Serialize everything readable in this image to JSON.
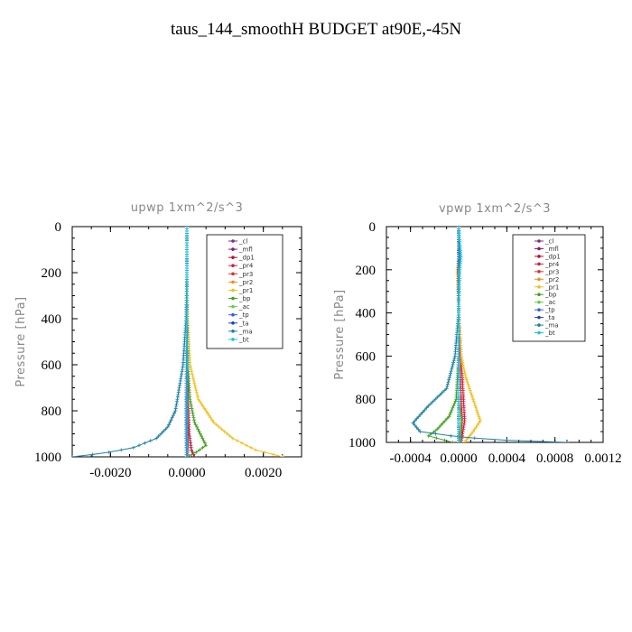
{
  "page_title": "taus_144_smoothH  BUDGET at90E,-45N",
  "chart_data": [
    {
      "type": "line",
      "title": "upwp   1xm^2/s^3",
      "ylabel": "Pressure [hPa]",
      "xlabel": "",
      "xlim": [
        -0.003,
        0.003
      ],
      "ylim": [
        1000,
        0
      ],
      "xticks": [
        "-0.0020",
        "0.0000",
        "0.0020"
      ],
      "xtick_values": [
        -0.002,
        0.0,
        0.002
      ],
      "yticks": [
        "0",
        "200",
        "400",
        "600",
        "800",
        "1000"
      ],
      "ytick_values": [
        0,
        200,
        400,
        600,
        800,
        1000
      ],
      "legend_position": "top-right",
      "series": [
        {
          "name": "_cl",
          "color": "#7b2d8b",
          "x": [
            0,
            0,
            0,
            0,
            0,
            0,
            0
          ],
          "y": [
            0,
            200,
            400,
            600,
            800,
            900,
            1000
          ]
        },
        {
          "name": "_mfl",
          "color": "#8b1a6b",
          "x": [
            0,
            0,
            0,
            0,
            0,
            0,
            0
          ],
          "y": [
            0,
            200,
            400,
            600,
            800,
            900,
            1000
          ]
        },
        {
          "name": "_dp1",
          "color": "#b0103a",
          "x": [
            0,
            0,
            0.0,
            2e-05,
            4e-05,
            6e-05,
            0.00012,
            0.0002
          ],
          "y": [
            0,
            200,
            400,
            600,
            800,
            900,
            970,
            1000
          ]
        },
        {
          "name": "_pr4",
          "color": "#d02040",
          "x": [
            0,
            0,
            0,
            2e-05,
            4e-05,
            4e-05,
            2e-05
          ],
          "y": [
            0,
            200,
            400,
            600,
            800,
            900,
            1000
          ]
        },
        {
          "name": "_pr3",
          "color": "#e03030",
          "x": [
            0,
            0,
            0,
            0,
            2e-05,
            2e-05,
            0
          ],
          "y": [
            0,
            200,
            400,
            600,
            800,
            900,
            1000
          ]
        },
        {
          "name": "_pr2",
          "color": "#e89020",
          "x": [
            0,
            0,
            0,
            0,
            0,
            0,
            0
          ],
          "y": [
            0,
            200,
            400,
            600,
            800,
            900,
            1000
          ]
        },
        {
          "name": "_pr1",
          "color": "#f0c020",
          "x": [
            0,
            0,
            2e-05,
            8e-05,
            0.0003,
            0.0007,
            0.0012,
            0.0018,
            0.0025
          ],
          "y": [
            0,
            200,
            400,
            600,
            750,
            850,
            920,
            970,
            1000
          ]
        },
        {
          "name": "_bp",
          "color": "#40a020",
          "x": [
            0,
            0,
            0,
            2e-05,
            8e-05,
            0.0002,
            0.0005,
            0.0002,
            0
          ],
          "y": [
            0,
            200,
            400,
            600,
            750,
            850,
            950,
            985,
            1000
          ]
        },
        {
          "name": "_ac",
          "color": "#60d040",
          "x": [
            0,
            0,
            0,
            0,
            0,
            0,
            0
          ],
          "y": [
            0,
            200,
            400,
            600,
            800,
            900,
            1000
          ]
        },
        {
          "name": "_tp",
          "color": "#3060e0",
          "x": [
            0,
            0,
            0,
            -1e-05,
            -2e-05,
            -2e-05,
            -1e-05
          ],
          "y": [
            0,
            200,
            400,
            600,
            800,
            900,
            1000
          ]
        },
        {
          "name": "_ta",
          "color": "#2040c0",
          "x": [
            0,
            0,
            0,
            0,
            0,
            0,
            0
          ],
          "y": [
            0,
            200,
            400,
            600,
            800,
            900,
            1000
          ]
        },
        {
          "name": "_ma",
          "color": "#2080a0",
          "x": [
            0,
            0,
            -2e-05,
            -0.0001,
            -0.0002,
            -0.0003,
            -0.0005,
            -0.0008,
            -0.0014,
            -0.0022,
            -0.003
          ],
          "y": [
            0,
            200,
            400,
            600,
            700,
            800,
            870,
            920,
            960,
            985,
            1000
          ]
        },
        {
          "name": "_bt",
          "color": "#20c0e0",
          "x": [
            0,
            0,
            0,
            0,
            0,
            0,
            0
          ],
          "y": [
            0,
            200,
            400,
            600,
            800,
            900,
            1000
          ]
        }
      ]
    },
    {
      "type": "line",
      "title": "vpwp   1xm^2/s^3",
      "ylabel": "Pressure [hPa]",
      "xlabel": "",
      "xlim": [
        -0.0006,
        0.0012
      ],
      "ylim": [
        1000,
        0
      ],
      "xticks": [
        "-0.0004",
        "0.0000",
        "0.0004",
        "0.0008",
        "0.0012"
      ],
      "xtick_values": [
        -0.0004,
        0.0,
        0.0004,
        0.0008,
        0.0012
      ],
      "yticks": [
        "0",
        "200",
        "400",
        "600",
        "800",
        "1000"
      ],
      "ytick_values": [
        0,
        200,
        400,
        600,
        800,
        1000
      ],
      "legend_position": "top-right",
      "series": [
        {
          "name": "_cl",
          "color": "#7b2d8b",
          "x": [
            0,
            0,
            0,
            0,
            0,
            0,
            0
          ],
          "y": [
            0,
            200,
            400,
            600,
            800,
            900,
            1000
          ]
        },
        {
          "name": "_mfl",
          "color": "#8b1a6b",
          "x": [
            0,
            0,
            0,
            0,
            0,
            0,
            0
          ],
          "y": [
            0,
            200,
            400,
            600,
            800,
            900,
            1000
          ]
        },
        {
          "name": "_dp1",
          "color": "#b0103a",
          "x": [
            0,
            0,
            0,
            1e-05,
            2e-05,
            3e-05,
            2e-05
          ],
          "y": [
            0,
            200,
            400,
            600,
            800,
            900,
            1000
          ]
        },
        {
          "name": "_pr4",
          "color": "#d02040",
          "x": [
            0,
            0,
            0,
            2e-05,
            4e-05,
            5e-05,
            2e-05
          ],
          "y": [
            0,
            200,
            400,
            600,
            800,
            900,
            1000
          ]
        },
        {
          "name": "_pr3",
          "color": "#e03030",
          "x": [
            0,
            0,
            0,
            1e-05,
            2e-05,
            2e-05,
            0
          ],
          "y": [
            0,
            200,
            400,
            600,
            800,
            900,
            1000
          ]
        },
        {
          "name": "_pr2",
          "color": "#e89020",
          "x": [
            0,
            0,
            -1e-05,
            0,
            0,
            0,
            0
          ],
          "y": [
            0,
            140,
            200,
            400,
            600,
            800,
            1000
          ]
        },
        {
          "name": "_pr1",
          "color": "#f0c020",
          "x": [
            0,
            0,
            0,
            2e-05,
            6e-05,
            0.00012,
            0.00018,
            0.00012,
            5e-05
          ],
          "y": [
            0,
            200,
            400,
            600,
            700,
            800,
            900,
            950,
            1000
          ]
        },
        {
          "name": "_bp",
          "color": "#40a020",
          "x": [
            0,
            0,
            0,
            0,
            -2e-05,
            -8e-05,
            -0.00018,
            -0.00025,
            -5e-05
          ],
          "y": [
            0,
            200,
            400,
            600,
            800,
            880,
            940,
            970,
            1000
          ]
        },
        {
          "name": "_ac",
          "color": "#60d040",
          "x": [
            0,
            0,
            0,
            0,
            0,
            2e-05,
            1e-05
          ],
          "y": [
            0,
            200,
            400,
            600,
            800,
            900,
            1000
          ]
        },
        {
          "name": "_tp",
          "color": "#3060e0",
          "x": [
            0,
            1e-05,
            0,
            0,
            0,
            0,
            0
          ],
          "y": [
            0,
            150,
            200,
            400,
            600,
            800,
            1000
          ]
        },
        {
          "name": "_ta",
          "color": "#2040c0",
          "x": [
            0,
            0,
            0,
            0,
            0,
            0,
            0
          ],
          "y": [
            0,
            200,
            400,
            600,
            800,
            900,
            1000
          ]
        },
        {
          "name": "_ma",
          "color": "#2080a0",
          "x": [
            0,
            0,
            0,
            -3e-05,
            -0.0001,
            -0.00025,
            -0.00038,
            -0.00032,
            0,
            0.0004,
            0.0009
          ],
          "y": [
            0,
            200,
            400,
            600,
            750,
            830,
            910,
            950,
            975,
            990,
            1000
          ]
        },
        {
          "name": "_bt",
          "color": "#20c0e0",
          "x": [
            0,
            2e-05,
            1e-05,
            0,
            0,
            0,
            0
          ],
          "y": [
            0,
            140,
            200,
            400,
            600,
            800,
            1000
          ]
        }
      ]
    }
  ]
}
